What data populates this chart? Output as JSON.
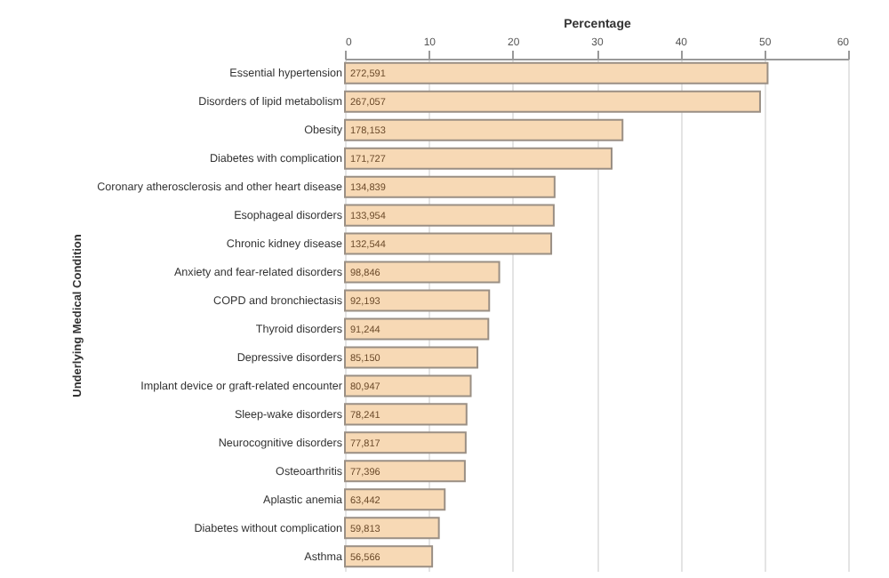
{
  "chart_data": {
    "type": "bar",
    "orientation": "horizontal",
    "xlabel": "Percentage",
    "ylabel": "Underlying Medical Condition",
    "categories": [
      "Essential hypertension",
      "Disorders of lipid metabolism",
      "Obesity",
      "Diabetes with complication",
      "Coronary atherosclerosis and other heart disease",
      "Esophageal disorders",
      "Chronic kidney disease",
      "Anxiety and fear-related disorders",
      "COPD and bronchiectasis",
      "Thyroid disorders",
      "Depressive disorders",
      "Implant device or graft-related encounter",
      "Sleep-wake disorders",
      "Neurocognitive disorders",
      "Osteoarthritis",
      "Aplastic anemia",
      "Diabetes without complication",
      "Asthma"
    ],
    "values": [
      50.4,
      49.5,
      33.1,
      31.8,
      25.0,
      24.9,
      24.6,
      18.4,
      17.2,
      17.1,
      15.8,
      15.0,
      14.5,
      14.4,
      14.3,
      11.9,
      11.2,
      10.4
    ],
    "annotations": [
      {
        "text": "272,591",
        "y": "Essential hypertension"
      },
      {
        "text": "267,057",
        "y": "Disorders of lipid metabolism"
      },
      {
        "text": "178,153",
        "y": "Obesity"
      },
      {
        "text": "171,727",
        "y": "Diabetes with complication"
      },
      {
        "text": "134,839",
        "y": "Coronary atherosclerosis and other heart disease"
      },
      {
        "text": "133,954",
        "y": "Esophageal disorders"
      },
      {
        "text": "132,544",
        "y": "Chronic kidney disease"
      },
      {
        "text": "98,846",
        "y": "Anxiety and fear-related disorders"
      },
      {
        "text": "92,193",
        "y": "COPD and bronchiectasis"
      },
      {
        "text": "91,244",
        "y": "Thyroid disorders"
      },
      {
        "text": "85,150",
        "y": "Depressive disorders"
      },
      {
        "text": "80,947",
        "y": "Implant device or graft-related encounter"
      },
      {
        "text": "78,241",
        "y": "Sleep-wake disorders"
      },
      {
        "text": "77,817",
        "y": "Neurocognitive disorders"
      },
      {
        "text": "77,396",
        "y": "Osteoarthritis"
      },
      {
        "text": "63,442",
        "y": "Aplastic anemia"
      },
      {
        "text": "59,813",
        "y": "Diabetes without complication"
      },
      {
        "text": "56,566",
        "y": "Asthma"
      }
    ],
    "color": "#f7d9b5",
    "xlim": [
      0,
      60
    ],
    "xticks": [
      0,
      10,
      20,
      30,
      40,
      50,
      60
    ],
    "grid": "x"
  }
}
